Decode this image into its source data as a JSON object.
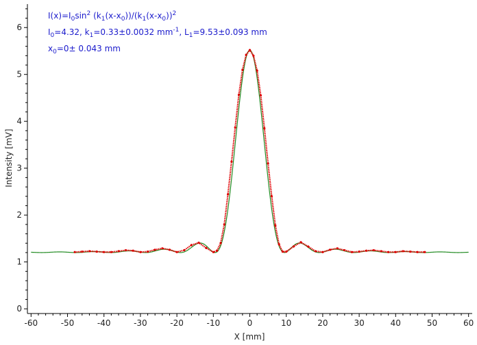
{
  "chart_data": {
    "type": "scatter",
    "xlabel": "X [mm]",
    "ylabel": "Intensity [mV]",
    "xlim": [
      -61,
      61
    ],
    "ylim": [
      -0.1,
      6.5
    ],
    "x_ticks": [
      -60,
      -50,
      -40,
      -30,
      -20,
      -10,
      0,
      10,
      20,
      30,
      40,
      50,
      60
    ],
    "y_ticks": [
      0,
      1,
      2,
      3,
      4,
      5,
      6
    ],
    "annotations": {
      "formula": {
        "p1": "I(x)=I",
        "s1": "0",
        "p2": "sin",
        "sup1": "2",
        "p3": " (k",
        "s2": "1",
        "p4": "(x-x",
        "s3": "0",
        "p5": "))/(k",
        "s4": "1",
        "p6": "(x-x",
        "s5": "0",
        "p7": "))",
        "sup2": "2"
      },
      "params": {
        "p1": "I",
        "s1": "0",
        "p2": "=4.32,  k",
        "s2": "1",
        "p3": "=0.33±0.0032 mm",
        "sup1": "-1",
        "p4": ",   L",
        "s3": "1",
        "p5": "=9.53±0.093 mm"
      },
      "offset": {
        "p1": "x",
        "s1": "0",
        "p2": "=0±  0.043 mm"
      }
    },
    "fit_model": {
      "I0": 4.32,
      "k1": 0.33,
      "x0": 0,
      "baseline": 1.2
    },
    "series": [
      {
        "color": "#228b22",
        "style": "line",
        "x_range": [
          -60,
          60
        ]
      },
      {
        "color": "#dd0000",
        "style": "points",
        "x": [
          -48,
          -46,
          -44,
          -42,
          -40,
          -38,
          -36,
          -34,
          -32,
          -30,
          -28,
          -26,
          -24,
          -22,
          -20,
          -18,
          -16,
          -14,
          -12,
          -10,
          -9,
          -8,
          -7,
          -6,
          -5,
          -4,
          -3,
          -2,
          -1,
          0,
          1,
          2,
          3,
          4,
          5,
          6,
          7,
          8,
          9,
          10,
          12,
          14,
          16,
          18,
          20,
          22,
          24,
          26,
          28,
          30,
          32,
          34,
          36,
          38,
          40,
          42,
          44,
          46,
          48
        ],
        "y": [
          1.21,
          1.22,
          1.23,
          1.22,
          1.21,
          1.21,
          1.23,
          1.25,
          1.24,
          1.21,
          1.22,
          1.26,
          1.29,
          1.26,
          1.21,
          1.25,
          1.36,
          1.41,
          1.3,
          1.21,
          1.24,
          1.4,
          1.8,
          2.44,
          3.14,
          3.87,
          4.57,
          5.1,
          5.42,
          5.52,
          5.4,
          5.08,
          4.55,
          3.85,
          3.1,
          2.4,
          1.78,
          1.38,
          1.22,
          1.22,
          1.33,
          1.42,
          1.33,
          1.23,
          1.21,
          1.26,
          1.29,
          1.25,
          1.21,
          1.22,
          1.24,
          1.25,
          1.23,
          1.21,
          1.21,
          1.23,
          1.22,
          1.21,
          1.21
        ]
      }
    ]
  }
}
